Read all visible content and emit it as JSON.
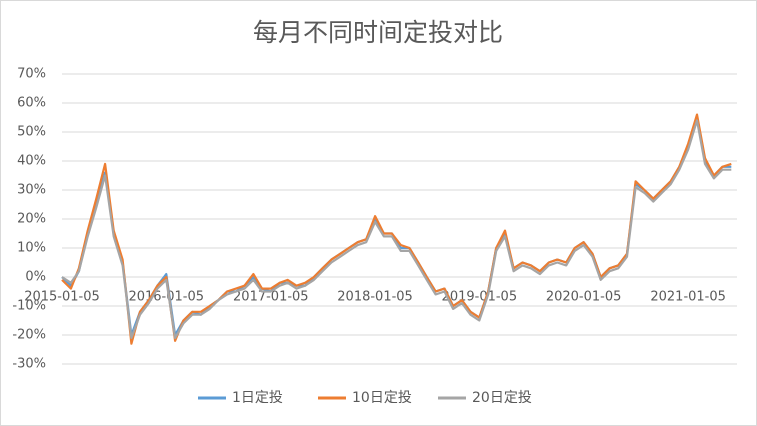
{
  "chart_data": {
    "type": "line",
    "title": "每月不同时间定投对比",
    "x": [
      "2015-01-05",
      "2015-02-05",
      "2015-03-05",
      "2015-04-05",
      "2015-05-05",
      "2015-06-05",
      "2015-07-05",
      "2015-08-05",
      "2015-09-05",
      "2015-10-05",
      "2015-11-05",
      "2015-12-05",
      "2016-01-05",
      "2016-02-05",
      "2016-03-05",
      "2016-04-05",
      "2016-05-05",
      "2016-06-05",
      "2016-07-05",
      "2016-08-05",
      "2016-09-05",
      "2016-10-05",
      "2016-11-05",
      "2016-12-05",
      "2017-01-05",
      "2017-02-05",
      "2017-03-05",
      "2017-04-05",
      "2017-05-05",
      "2017-06-05",
      "2017-07-05",
      "2017-08-05",
      "2017-09-05",
      "2017-10-05",
      "2017-11-05",
      "2017-12-05",
      "2018-01-05",
      "2018-02-05",
      "2018-03-05",
      "2018-04-05",
      "2018-05-05",
      "2018-06-05",
      "2018-07-05",
      "2018-08-05",
      "2018-09-05",
      "2018-10-05",
      "2018-11-05",
      "2018-12-05",
      "2019-01-05",
      "2019-02-05",
      "2019-03-05",
      "2019-04-05",
      "2019-05-05",
      "2019-06-05",
      "2019-07-05",
      "2019-08-05",
      "2019-09-05",
      "2019-10-05",
      "2019-11-05",
      "2019-12-05",
      "2020-01-05",
      "2020-02-05",
      "2020-03-05",
      "2020-04-05",
      "2020-05-05",
      "2020-06-05",
      "2020-07-05",
      "2020-08-05",
      "2020-09-05",
      "2020-10-05",
      "2020-11-05",
      "2020-12-05",
      "2021-01-05",
      "2021-02-05",
      "2021-03-05",
      "2021-04-05",
      "2021-05-05",
      "2021-06-05"
    ],
    "series": [
      {
        "name": "1日定投",
        "color": "#5b9bd5",
        "values": [
          0,
          -3,
          2,
          15,
          25,
          36,
          15,
          5,
          -20,
          -12,
          -8,
          -3,
          1,
          -20,
          -15,
          -12,
          -13,
          -10,
          -8,
          -5,
          -5,
          -3,
          0,
          -4,
          -5,
          -2,
          -2,
          -3,
          -3,
          0,
          3,
          6,
          8,
          10,
          12,
          13,
          20,
          15,
          15,
          10,
          10,
          5,
          0,
          -5,
          -4,
          -10,
          -8,
          -12,
          -14,
          -5,
          10,
          15,
          3,
          5,
          4,
          2,
          5,
          6,
          5,
          10,
          12,
          8,
          0,
          3,
          4,
          8,
          32,
          30,
          27,
          30,
          33,
          38,
          45,
          55,
          40,
          35,
          38,
          38
        ]
      },
      {
        "name": "10日定投",
        "color": "#ed7d31",
        "values": [
          -1,
          -4,
          3,
          16,
          27,
          39,
          16,
          6,
          -23,
          -12,
          -8,
          -3,
          0,
          -22,
          -15,
          -12,
          -12,
          -10,
          -8,
          -5,
          -4,
          -3,
          1,
          -4,
          -4,
          -2,
          -1,
          -3,
          -2,
          0,
          3,
          6,
          8,
          10,
          12,
          13,
          21,
          15,
          15,
          11,
          10,
          5,
          0,
          -5,
          -4,
          -10,
          -8,
          -12,
          -14,
          -5,
          10,
          16,
          3,
          5,
          4,
          2,
          5,
          6,
          5,
          10,
          12,
          8,
          0,
          3,
          4,
          8,
          33,
          30,
          27,
          30,
          33,
          38,
          46,
          56,
          41,
          35,
          38,
          39
        ]
      },
      {
        "name": "20日定投",
        "color": "#a5a5a5",
        "values": [
          0,
          -2,
          2,
          14,
          24,
          35,
          14,
          4,
          -21,
          -13,
          -9,
          -4,
          -1,
          -21,
          -16,
          -13,
          -13,
          -11,
          -8,
          -6,
          -5,
          -4,
          -1,
          -5,
          -5,
          -3,
          -2,
          -4,
          -3,
          -1,
          2,
          5,
          7,
          9,
          11,
          12,
          19,
          14,
          14,
          9,
          9,
          4,
          -1,
          -6,
          -5,
          -11,
          -9,
          -13,
          -15,
          -6,
          9,
          14,
          2,
          4,
          3,
          1,
          4,
          5,
          4,
          9,
          11,
          7,
          -1,
          2,
          3,
          7,
          31,
          29,
          26,
          29,
          32,
          37,
          44,
          54,
          39,
          34,
          37,
          37
        ]
      }
    ],
    "xlim": [
      "2015-01-05",
      "2021-06-25"
    ],
    "xticks": [
      "2015-01-05",
      "2016-01-05",
      "2017-01-05",
      "2018-01-05",
      "2019-01-05",
      "2020-01-05",
      "2021-01-05"
    ],
    "ylim": [
      -30,
      70
    ],
    "yticks": [
      {
        "value": -30,
        "label": "-30%"
      },
      {
        "value": -20,
        "label": "-20%"
      },
      {
        "value": -10,
        "label": "-10%"
      },
      {
        "value": 0,
        "label": "0%"
      },
      {
        "value": 10,
        "label": "10%"
      },
      {
        "value": 20,
        "label": "20%"
      },
      {
        "value": 30,
        "label": "30%"
      },
      {
        "value": 40,
        "label": "40%"
      },
      {
        "value": 50,
        "label": "50%"
      },
      {
        "value": 60,
        "label": "60%"
      },
      {
        "value": 70,
        "label": "70%"
      }
    ],
    "grid": true,
    "legend": "bottom"
  }
}
